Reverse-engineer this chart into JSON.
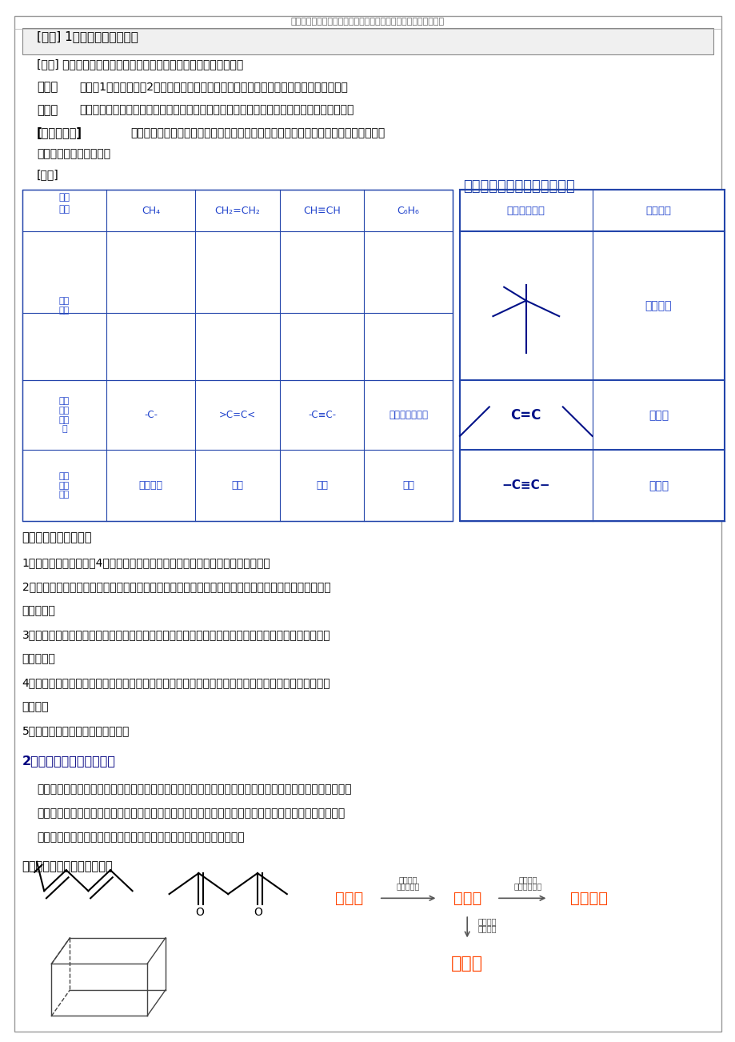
{
  "page_bg": "#ffffff",
  "header_text": "最新学习考试资料试卷件及海量高中、初中教学课尽在金锄头文库",
  "title_box": "[板书] 1、键长、键角、键能",
  "summary_lines": [
    "1、当一个碳原子与其他4个原子连接时，这个碳原子将采取四面体取向与之成键。",
    "2、当碳原子之间或碳原子与其他原子之间形成双键时，形成双键的原子以及与之直接相连的原子处于同",
    "一平面上。",
    "3、当碳原子之间或碳原子与其他原子之间形成叁键时，形成叁键的原子以及与之直接相连的原子处于同",
    "一直线上。",
    "4、烃分子中，仅以单键方式成键的碳原子称为饱和碳原子；以双键或叁键方式成键的碳原子称为不饱和",
    "碳原子。",
    "5、只有单键可以在空间任意旋转。"
  ],
  "section2_title": "2、有机物结构的表示方法",
  "bottom_text1": "【讲】结构式：有机物分子中原子间的一对共用电子（一个共价键）用一根短线表示，将有机物分子中的原",
  "bottom_text2": "子连接起来，若省略碳碳单键或碳氢单键等短线，成为结构简式。若将碳、氢元素符号省略，只表示分子",
  "bottom_text3": "中键的连接情况，每个拐点或终点均表示有一个碳原子，称为键线式。",
  "exercise_title": "将下列键线式改为结构简式："
}
